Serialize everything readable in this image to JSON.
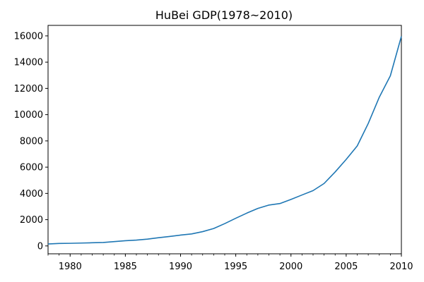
{
  "chart_data": {
    "type": "line",
    "title": "HuBei GDP(1978~2010)",
    "xlabel": "",
    "ylabel": "",
    "xlim": [
      1978,
      2010
    ],
    "ylim": [
      -600,
      16800
    ],
    "grid": false,
    "x_ticks": [
      1980,
      1985,
      1990,
      1995,
      2000,
      2005,
      2010
    ],
    "x_minor_ticks": [
      1978,
      1979,
      1981,
      1982,
      1983,
      1984,
      1986,
      1987,
      1988,
      1989,
      1991,
      1992,
      1993,
      1994,
      1996,
      1997,
      1998,
      1999,
      2001,
      2002,
      2003,
      2004,
      2006,
      2007,
      2008,
      2009
    ],
    "y_ticks": [
      0,
      2000,
      4000,
      6000,
      8000,
      10000,
      12000,
      14000,
      16000
    ],
    "line_color": "#1f77b4",
    "series": [
      {
        "x": [
          1978,
          1979,
          1980,
          1981,
          1982,
          1983,
          1984,
          1985,
          1986,
          1987,
          1988,
          1989,
          1990,
          1991,
          1992,
          1993,
          1994,
          1995,
          1996,
          1997,
          1998,
          1999,
          2000,
          2001,
          2002,
          2003,
          2004,
          2005,
          2006,
          2007,
          2008,
          2009,
          2010
        ],
        "values": [
          151,
          188,
          199,
          219,
          241,
          263,
          328,
          397,
          442,
          517,
          626,
          717,
          824,
          913,
          1088,
          1325,
          1700,
          2109,
          2499,
          2856,
          3114,
          3229,
          3545,
          3881,
          4213,
          4757,
          5633,
          6590,
          7617,
          9333,
          11330,
          12961,
          15968
        ]
      }
    ]
  }
}
